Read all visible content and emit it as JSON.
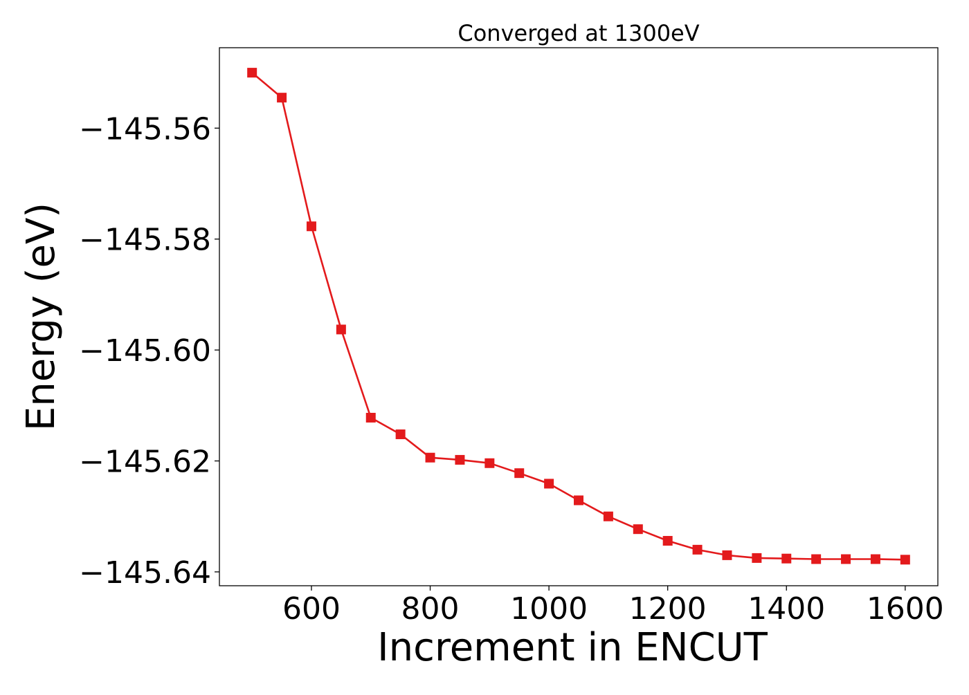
{
  "chart_data": {
    "type": "line",
    "title": "Converged at 1300eV",
    "xlabel": "Increment in ENCUT",
    "ylabel": "Energy (eV)",
    "xlim": [
      445,
      1655
    ],
    "ylim": [
      -145.6425,
      -145.5455
    ],
    "xticks": [
      600,
      800,
      1000,
      1200,
      1400,
      1600
    ],
    "xtick_labels": [
      "600",
      "800",
      "1000",
      "1200",
      "1400",
      "1600"
    ],
    "yticks": [
      -145.56,
      -145.58,
      -145.6,
      -145.62,
      -145.64
    ],
    "ytick_labels": [
      "−145.56",
      "−145.58",
      "−145.60",
      "−145.62",
      "−145.64"
    ],
    "grid": false,
    "series": [
      {
        "color": "#e31a1c",
        "marker": "square",
        "x": [
          500,
          550,
          600,
          650,
          700,
          750,
          800,
          850,
          900,
          950,
          1000,
          1050,
          1100,
          1150,
          1200,
          1250,
          1300,
          1350,
          1400,
          1450,
          1500,
          1550,
          1600
        ],
        "y": [
          -145.55,
          -145.5545,
          -145.5777,
          -145.5963,
          -145.6122,
          -145.6152,
          -145.6194,
          -145.6198,
          -145.6204,
          -145.6222,
          -145.6241,
          -145.6271,
          -145.63,
          -145.6323,
          -145.6344,
          -145.636,
          -145.637,
          -145.6375,
          -145.6376,
          -145.6377,
          -145.6377,
          -145.6377,
          -145.6378
        ]
      }
    ]
  }
}
